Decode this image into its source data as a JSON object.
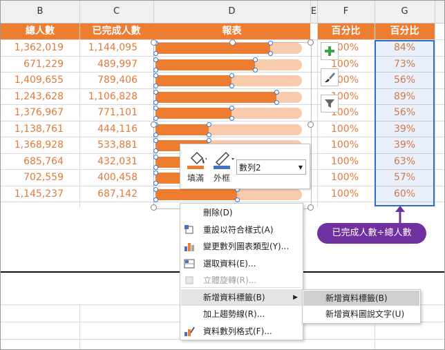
{
  "columns": [
    "B",
    "C",
    "D",
    "E",
    "F",
    "G"
  ],
  "headers": {
    "total": "總人數",
    "done": "已完成人數",
    "chart": "報表",
    "pct1": "百分比",
    "pct2": "百分比"
  },
  "rows": [
    {
      "total": "1,362,019",
      "done": "1,144,095",
      "pct1": "100%",
      "pct2": "84%"
    },
    {
      "total": "671,229",
      "done": "489,997",
      "pct1": "100%",
      "pct2": "73%"
    },
    {
      "total": "1,409,655",
      "done": "789,406",
      "pct1": "100%",
      "pct2": "56%"
    },
    {
      "total": "1,243,628",
      "done": "1,106,828",
      "pct1": "100%",
      "pct2": "89%"
    },
    {
      "total": "1,376,967",
      "done": "771,101",
      "pct1": "100%",
      "pct2": "56%"
    },
    {
      "total": "1,138,761",
      "done": "444,116",
      "pct1": "100%",
      "pct2": "39%"
    },
    {
      "total": "1,368,928",
      "done": "533,881",
      "pct1": "100%",
      "pct2": "39%"
    },
    {
      "total": "685,764",
      "done": "432,031",
      "pct1": "100%",
      "pct2": "63%"
    },
    {
      "total": "702,559",
      "done": "400,458",
      "pct1": "100%",
      "pct2": "57%"
    },
    {
      "total": "1,145,237",
      "done": "687,142",
      "pct1": "100%",
      "pct2": "60%"
    }
  ],
  "bar_fractions": [
    0.84,
    0.73,
    0.56,
    0.89,
    0.56,
    0.39,
    0.39,
    0.63,
    0.57,
    0.6
  ],
  "mini_toolbar": {
    "fill": "填滿",
    "outline": "外框",
    "series": "數列2"
  },
  "context_menu": [
    {
      "label": "刪除(D)",
      "icon": "none"
    },
    {
      "label": "重設以符合樣式(A)",
      "icon": "reset-style-icon"
    },
    {
      "label": "變更數列圖表類型(Y)...",
      "icon": "chart-type-icon"
    },
    {
      "label": "選取資料(E)...",
      "icon": "select-data-icon"
    },
    {
      "label": "立體旋轉(R)...",
      "icon": "rotate-3d-icon",
      "disabled": true
    },
    {
      "label": "新增資料標籤(B)",
      "icon": "none",
      "submenu": true,
      "highlight": true
    },
    {
      "label": "加上趨勢線(R)...",
      "icon": "none"
    },
    {
      "label": "資料數列格式(F)...",
      "icon": "format-series-icon"
    }
  ],
  "submenu": [
    {
      "label": "新增資料標籤(B)",
      "highlight": true
    },
    {
      "label": "新增資料圖說文字(U)"
    }
  ],
  "callout": "已完成人數÷總人數",
  "colors": {
    "accent": "#ed7d31",
    "bar_bg": "#f8cbad",
    "text_orange": "#e07a3a",
    "callout": "#7030a0",
    "selection": "#2f6ec8"
  }
}
